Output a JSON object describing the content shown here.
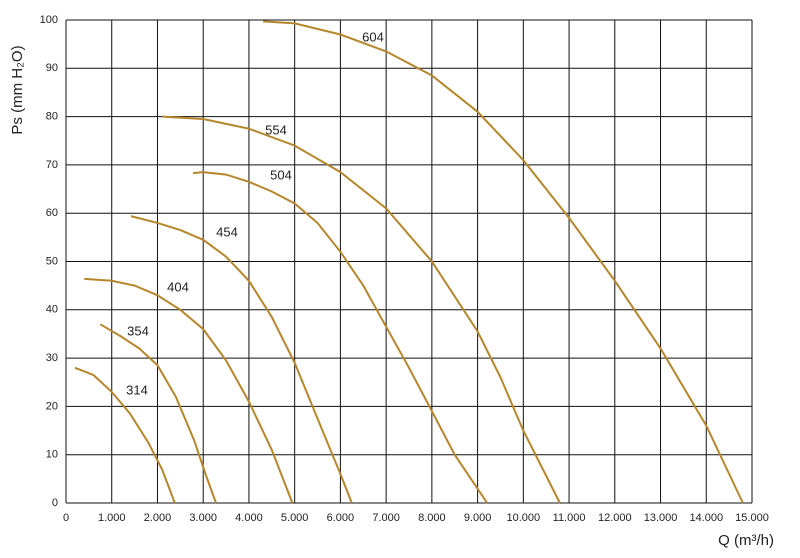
{
  "chart_data": {
    "type": "line",
    "x_label": "Q (m³/h)",
    "y_label": "Ps (mm H₂O)",
    "xlim": [
      0,
      15000
    ],
    "ylim": [
      0,
      100
    ],
    "xticks": [
      0,
      {
        "value": 1000,
        "label": "1.000"
      },
      {
        "value": 2000,
        "label": "2.000"
      },
      {
        "value": 3000,
        "label": "3.000"
      },
      {
        "value": 4000,
        "label": "4.000"
      },
      {
        "value": 5000,
        "label": "5.000"
      },
      {
        "value": 6000,
        "label": "6.000"
      },
      {
        "value": 7000,
        "label": "7.000"
      },
      {
        "value": 8000,
        "label": "8.000"
      },
      {
        "value": 9000,
        "label": "9.000"
      },
      {
        "value": 10000,
        "label": "10.000"
      },
      {
        "value": 11000,
        "label": "11.000"
      },
      {
        "value": 12000,
        "label": "12.000"
      },
      {
        "value": 13000,
        "label": "13.000"
      },
      {
        "value": 14000,
        "label": "14.000"
      },
      {
        "value": 15000,
        "label": "15.000"
      }
    ],
    "yticks": [
      0,
      10,
      20,
      30,
      40,
      50,
      60,
      70,
      80,
      90,
      100
    ],
    "grid": true,
    "series": [
      {
        "name": "314",
        "color": "#b5862c",
        "x": [
          200,
          600,
          1000,
          1400,
          1800,
          2100,
          2380
        ],
        "values": [
          28,
          26.5,
          23,
          18.5,
          12.5,
          7,
          0
        ]
      },
      {
        "name": "354",
        "color": "#b5862c",
        "x": [
          750,
          1200,
          1600,
          2000,
          2400,
          2800,
          3050,
          3280
        ],
        "values": [
          37,
          34.5,
          32,
          28.5,
          22,
          13,
          6,
          0
        ]
      },
      {
        "name": "404",
        "color": "#b5862c",
        "x": [
          400,
          1000,
          1500,
          2000,
          2500,
          3000,
          3500,
          4000,
          4500,
          4950
        ],
        "values": [
          46.4,
          46,
          45,
          43,
          40,
          36,
          29.5,
          21,
          11,
          0
        ]
      },
      {
        "name": "454",
        "color": "#b5862c",
        "x": [
          1420,
          2000,
          2500,
          3000,
          3500,
          4000,
          4500,
          5000,
          5500,
          6000,
          6250
        ],
        "values": [
          59.4,
          58,
          56.5,
          54.5,
          51,
          46,
          38.5,
          29,
          17.5,
          6,
          0
        ]
      },
      {
        "name": "504",
        "color": "#b5862c",
        "x": [
          2780,
          3000,
          3500,
          4000,
          4500,
          5000,
          5500,
          6000,
          6500,
          7000,
          7500,
          8000,
          8500,
          9210
        ],
        "values": [
          68.3,
          68.5,
          68,
          66.5,
          64.5,
          62,
          58,
          52,
          45,
          36.5,
          28,
          19,
          10,
          0
        ]
      },
      {
        "name": "554",
        "color": "#b5862c",
        "x": [
          2100,
          3000,
          4000,
          5000,
          6000,
          7000,
          8000,
          9000,
          9500,
          10000,
          10800
        ],
        "values": [
          80,
          79.5,
          77.5,
          74,
          68.5,
          61,
          50,
          35.5,
          26,
          15,
          0
        ]
      },
      {
        "name": "604",
        "color": "#b5862c",
        "x": [
          4310,
          5000,
          6000,
          7000,
          8000,
          9000,
          10000,
          11000,
          12000,
          13000,
          14000,
          14800
        ],
        "values": [
          99.7,
          99.3,
          97,
          93.5,
          88.5,
          81,
          71,
          59,
          46,
          32,
          16,
          0
        ]
      }
    ]
  }
}
